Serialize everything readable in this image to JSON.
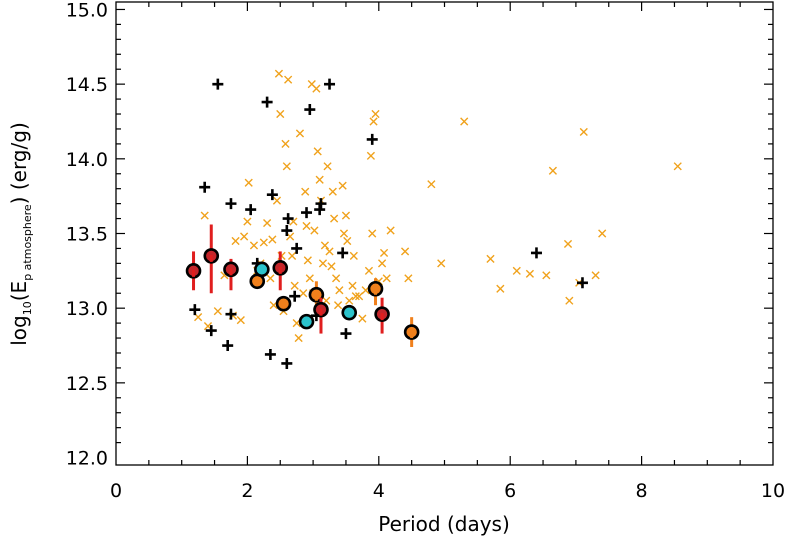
{
  "chart_data": {
    "type": "scatter",
    "xlabel": "Period (days)",
    "ylabel": {
      "prefix": "log",
      "prefix_sub": "10",
      "open": "(E",
      "sub": "p atmosphere",
      "close": ")  (erg/g)"
    },
    "xlim": [
      0,
      10
    ],
    "ylim": [
      11.95,
      15.05
    ],
    "x_ticks": [
      0,
      2,
      4,
      6,
      8,
      10
    ],
    "x_tick_labels": [
      "0",
      "2",
      "4",
      "6",
      "8",
      "10"
    ],
    "y_ticks": [
      12.0,
      12.5,
      13.0,
      13.5,
      14.0,
      14.5,
      15.0
    ],
    "y_tick_labels": [
      "12.0",
      "12.5",
      "13.0",
      "13.5",
      "14.0",
      "14.5",
      "15.0"
    ],
    "grid": false,
    "colors": {
      "orange_x": "#f0a21c",
      "black_plus": "#000000",
      "red_fill": "#c4262b",
      "orange_fill": "#f0801c",
      "cyan_fill": "#2cc3cc",
      "red_bar": "#e01e1e",
      "orange_bar": "#f0801c"
    },
    "series": [
      {
        "marker": "x",
        "color": "#f0a21c",
        "points": [
          [
            1.35,
            13.62
          ],
          [
            1.25,
            12.94
          ],
          [
            1.4,
            12.88
          ],
          [
            1.55,
            12.98
          ],
          [
            1.65,
            13.22
          ],
          [
            1.78,
            12.95
          ],
          [
            1.82,
            13.45
          ],
          [
            1.9,
            12.92
          ],
          [
            1.95,
            13.48
          ],
          [
            2.0,
            13.58
          ],
          [
            2.02,
            13.84
          ],
          [
            2.1,
            13.42
          ],
          [
            2.15,
            13.25
          ],
          [
            2.2,
            13.3
          ],
          [
            2.25,
            13.44
          ],
          [
            2.3,
            13.57
          ],
          [
            2.35,
            13.2
          ],
          [
            2.38,
            13.46
          ],
          [
            2.4,
            13.02
          ],
          [
            2.45,
            13.72
          ],
          [
            2.48,
            14.57
          ],
          [
            2.5,
            14.3
          ],
          [
            2.52,
            13.35
          ],
          [
            2.55,
            12.98
          ],
          [
            2.58,
            14.1
          ],
          [
            2.6,
            13.95
          ],
          [
            2.62,
            14.53
          ],
          [
            2.65,
            13.48
          ],
          [
            2.68,
            13.35
          ],
          [
            2.7,
            13.58
          ],
          [
            2.72,
            13.15
          ],
          [
            2.75,
            12.9
          ],
          [
            2.78,
            12.8
          ],
          [
            2.8,
            14.17
          ],
          [
            2.85,
            13.1
          ],
          [
            2.88,
            13.78
          ],
          [
            2.9,
            13.55
          ],
          [
            2.92,
            13.32
          ],
          [
            2.95,
            13.2
          ],
          [
            2.98,
            14.5
          ],
          [
            3.0,
            13.1
          ],
          [
            3.02,
            13.52
          ],
          [
            3.05,
            14.47
          ],
          [
            3.07,
            14.05
          ],
          [
            3.1,
            13.86
          ],
          [
            3.12,
            13.72
          ],
          [
            3.15,
            13.3
          ],
          [
            3.18,
            13.42
          ],
          [
            3.2,
            13.05
          ],
          [
            3.22,
            13.95
          ],
          [
            3.25,
            13.38
          ],
          [
            3.28,
            13.28
          ],
          [
            3.3,
            13.78
          ],
          [
            3.32,
            13.6
          ],
          [
            3.35,
            13.2
          ],
          [
            3.38,
            13.02
          ],
          [
            3.4,
            13.12
          ],
          [
            3.45,
            13.82
          ],
          [
            3.47,
            13.5
          ],
          [
            3.5,
            13.62
          ],
          [
            3.52,
            13.45
          ],
          [
            3.55,
            13.05
          ],
          [
            3.6,
            13.15
          ],
          [
            3.62,
            13.35
          ],
          [
            3.65,
            13.08
          ],
          [
            3.7,
            13.08
          ],
          [
            3.75,
            12.93
          ],
          [
            3.8,
            13.12
          ],
          [
            3.85,
            13.25
          ],
          [
            3.88,
            14.02
          ],
          [
            3.9,
            13.5
          ],
          [
            3.92,
            14.25
          ],
          [
            3.95,
            14.3
          ],
          [
            4.0,
            13.18
          ],
          [
            4.05,
            13.3
          ],
          [
            4.08,
            13.37
          ],
          [
            4.12,
            13.2
          ],
          [
            4.18,
            13.52
          ],
          [
            4.4,
            13.38
          ],
          [
            4.45,
            13.2
          ],
          [
            4.8,
            13.83
          ],
          [
            4.95,
            13.3
          ],
          [
            5.3,
            14.25
          ],
          [
            5.7,
            13.33
          ],
          [
            5.85,
            13.13
          ],
          [
            6.1,
            13.25
          ],
          [
            6.3,
            13.23
          ],
          [
            6.55,
            13.22
          ],
          [
            6.65,
            13.92
          ],
          [
            6.88,
            13.43
          ],
          [
            6.9,
            13.05
          ],
          [
            7.05,
            13.17
          ],
          [
            7.12,
            14.18
          ],
          [
            7.3,
            13.22
          ],
          [
            7.4,
            13.5
          ],
          [
            8.55,
            13.95
          ]
        ]
      },
      {
        "marker": "+",
        "color": "#000000",
        "points": [
          [
            1.2,
            12.99
          ],
          [
            1.35,
            13.81
          ],
          [
            1.45,
            12.85
          ],
          [
            1.55,
            14.5
          ],
          [
            1.7,
            12.75
          ],
          [
            1.75,
            13.7
          ],
          [
            1.75,
            12.96
          ],
          [
            2.05,
            13.66
          ],
          [
            2.15,
            13.3
          ],
          [
            2.3,
            14.38
          ],
          [
            2.35,
            12.69
          ],
          [
            2.38,
            13.76
          ],
          [
            2.6,
            13.52
          ],
          [
            2.62,
            13.6
          ],
          [
            2.6,
            12.63
          ],
          [
            2.72,
            13.08
          ],
          [
            2.75,
            13.4
          ],
          [
            2.9,
            13.64
          ],
          [
            2.95,
            14.33
          ],
          [
            3.05,
            12.95
          ],
          [
            3.1,
            13.66
          ],
          [
            3.12,
            13.7
          ],
          [
            3.25,
            14.5
          ],
          [
            3.45,
            13.37
          ],
          [
            3.5,
            12.83
          ],
          [
            3.9,
            14.13
          ],
          [
            6.4,
            13.37
          ],
          [
            7.1,
            13.17
          ]
        ]
      },
      {
        "marker": "circle",
        "points": [
          {
            "x": 1.18,
            "y": 13.25,
            "fill": "#c4262b",
            "bar": "#e01e1e",
            "lo": 13.12,
            "hi": 13.38
          },
          {
            "x": 1.45,
            "y": 13.35,
            "fill": "#c4262b",
            "bar": "#e01e1e",
            "lo": 13.1,
            "hi": 13.56
          },
          {
            "x": 1.75,
            "y": 13.26,
            "fill": "#c4262b",
            "bar": "#e01e1e",
            "lo": 13.12,
            "hi": 13.33
          },
          {
            "x": 2.15,
            "y": 13.18,
            "fill": "#f0801c",
            "bar": null,
            "lo": null,
            "hi": null
          },
          {
            "x": 2.22,
            "y": 13.26,
            "fill": "#2cc3cc",
            "bar": null,
            "lo": null,
            "hi": null
          },
          {
            "x": 2.5,
            "y": 13.27,
            "fill": "#c4262b",
            "bar": "#e01e1e",
            "lo": 13.12,
            "hi": 13.38
          },
          {
            "x": 2.55,
            "y": 13.03,
            "fill": "#f0801c",
            "bar": null,
            "lo": null,
            "hi": null
          },
          {
            "x": 2.9,
            "y": 12.91,
            "fill": "#2cc3cc",
            "bar": null,
            "lo": null,
            "hi": null
          },
          {
            "x": 3.05,
            "y": 13.09,
            "fill": "#f0801c",
            "bar": "#f0801c",
            "lo": 13.0,
            "hi": 13.18
          },
          {
            "x": 3.12,
            "y": 12.99,
            "fill": "#c4262b",
            "bar": "#e01e1e",
            "lo": 12.83,
            "hi": 13.07
          },
          {
            "x": 3.55,
            "y": 12.97,
            "fill": "#2cc3cc",
            "bar": null,
            "lo": null,
            "hi": null
          },
          {
            "x": 3.95,
            "y": 13.13,
            "fill": "#f0801c",
            "bar": "#f0801c",
            "lo": 13.02,
            "hi": 13.2
          },
          {
            "x": 4.05,
            "y": 12.96,
            "fill": "#c4262b",
            "bar": "#e01e1e",
            "lo": 12.83,
            "hi": 13.07
          },
          {
            "x": 4.5,
            "y": 12.84,
            "fill": "#f0801c",
            "bar": "#f0801c",
            "lo": 12.74,
            "hi": 12.94
          }
        ]
      }
    ]
  }
}
